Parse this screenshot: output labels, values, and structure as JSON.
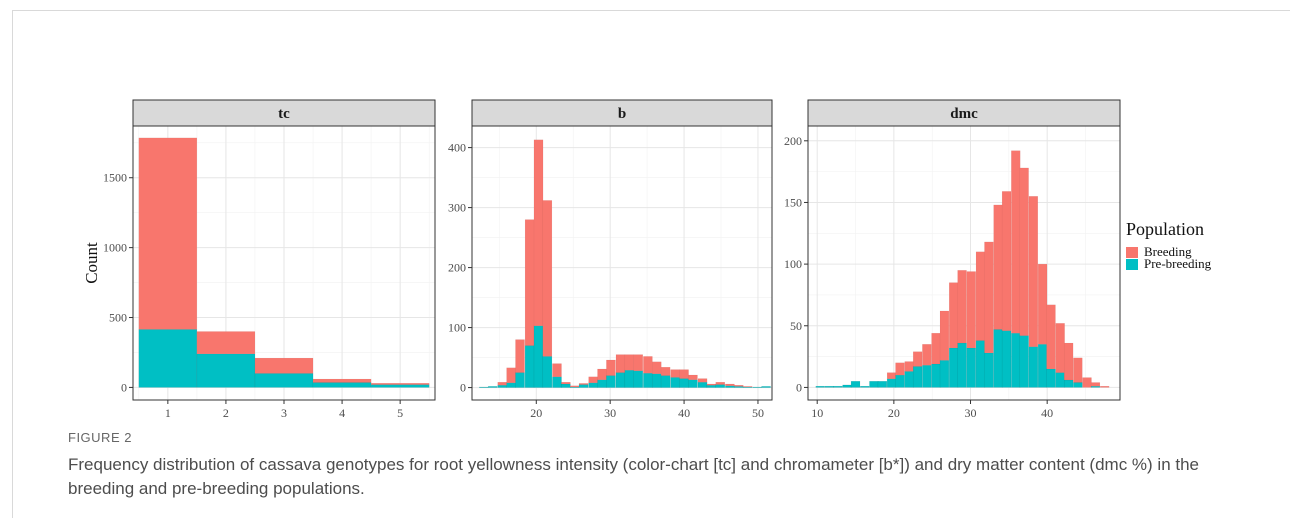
{
  "figure": {
    "label": "FIGURE 2",
    "caption": "Frequency distribution of cassava genotypes for root yellowness intensity (color-chart [tc] and chromameter [b*]) and dry matter content (dmc %) in the breeding and pre-breeding populations."
  },
  "legend": {
    "title": "Population",
    "items": [
      {
        "label": "Breeding",
        "color": "#F8766D"
      },
      {
        "label": "Pre-breeding",
        "color": "#00BFC4"
      }
    ]
  },
  "chart_data": [
    {
      "type": "bar",
      "title": "tc",
      "ylabel": "Count",
      "xlabel": "",
      "x_ticks": [
        1,
        2,
        3,
        4,
        5
      ],
      "y_ticks": [
        0,
        500,
        1000,
        1500
      ],
      "xlim": [
        0.4,
        5.6
      ],
      "ylim": [
        -90,
        1870
      ],
      "bin_width": 1,
      "bins": [
        1,
        2,
        3,
        4,
        5
      ],
      "series": [
        {
          "name": "Breeding",
          "color": "#F8766D",
          "values": [
            1370,
            160,
            110,
            25,
            10
          ]
        },
        {
          "name": "Pre-breeding",
          "color": "#00BFC4",
          "values": [
            415,
            240,
            100,
            35,
            20
          ]
        }
      ],
      "stacked": true,
      "grid": true
    },
    {
      "type": "bar",
      "title": "b",
      "ylabel": "",
      "xlabel": "",
      "x_ticks": [
        20,
        30,
        40,
        50
      ],
      "y_ticks": [
        0,
        100,
        200,
        300,
        400
      ],
      "xlim": [
        11.3,
        51.9
      ],
      "ylim": [
        -20.7,
        436
      ],
      "bin_width": 1.23,
      "bins": [
        12.9,
        14.1,
        15.4,
        16.6,
        17.8,
        19.1,
        20.3,
        21.5,
        22.8,
        24.0,
        25.2,
        26.4,
        27.7,
        28.9,
        30.1,
        31.4,
        32.6,
        33.8,
        35.1,
        36.3,
        37.5,
        38.8,
        40.0,
        41.2,
        42.5,
        43.7,
        44.9,
        46.2,
        47.4,
        48.6,
        49.9,
        51.1
      ],
      "series": [
        {
          "name": "Breeding",
          "color": "#F8766D",
          "values": [
            0,
            0,
            5,
            25,
            55,
            210,
            310,
            260,
            22,
            3,
            2,
            2,
            10,
            18,
            26,
            30,
            26,
            27,
            28,
            20,
            14,
            13,
            15,
            8,
            6,
            2,
            4,
            3,
            2,
            1,
            0,
            0
          ]
        },
        {
          "name": "Pre-breeding",
          "color": "#00BFC4",
          "values": [
            1,
            2,
            4,
            8,
            25,
            70,
            103,
            52,
            18,
            6,
            1,
            5,
            8,
            13,
            20,
            25,
            29,
            28,
            24,
            23,
            20,
            17,
            15,
            13,
            9,
            4,
            5,
            3,
            2,
            1,
            1,
            2
          ]
        }
      ],
      "stacked": true,
      "grid": true
    },
    {
      "type": "bar",
      "title": "dmc",
      "ylabel": "",
      "xlabel": "",
      "x_ticks": [
        10,
        20,
        30,
        40
      ],
      "y_ticks": [
        0,
        50,
        100,
        150,
        200
      ],
      "xlim": [
        8.8,
        49.5
      ],
      "ylim": [
        -10.2,
        212
      ],
      "bin_width": 1.16,
      "bins": [
        10.4,
        11.6,
        12.7,
        13.9,
        15.0,
        16.2,
        17.4,
        18.5,
        19.7,
        20.8,
        22.0,
        23.1,
        24.3,
        25.5,
        26.6,
        27.8,
        28.9,
        30.1,
        31.3,
        32.4,
        33.6,
        34.7,
        35.9,
        37.0,
        38.2,
        39.4,
        40.5,
        41.7,
        42.8,
        44.0,
        45.2,
        46.3,
        47.5
      ],
      "series": [
        {
          "name": "Breeding",
          "color": "#F8766D",
          "values": [
            0,
            0,
            0,
            0,
            0,
            0,
            0,
            0,
            5,
            10,
            8,
            12,
            17,
            25,
            40,
            53,
            59,
            62,
            72,
            90,
            101,
            113,
            148,
            136,
            122,
            65,
            52,
            40,
            30,
            20,
            8,
            3,
            1
          ]
        },
        {
          "name": "Pre-breeding",
          "color": "#00BFC4",
          "values": [
            1,
            1,
            1,
            2,
            5,
            1,
            5,
            5,
            7,
            10,
            13,
            17,
            18,
            19,
            22,
            32,
            36,
            32,
            38,
            28,
            47,
            46,
            44,
            42,
            33,
            35,
            15,
            12,
            6,
            4,
            0,
            1,
            0
          ]
        }
      ],
      "stacked": true,
      "grid": true
    }
  ]
}
